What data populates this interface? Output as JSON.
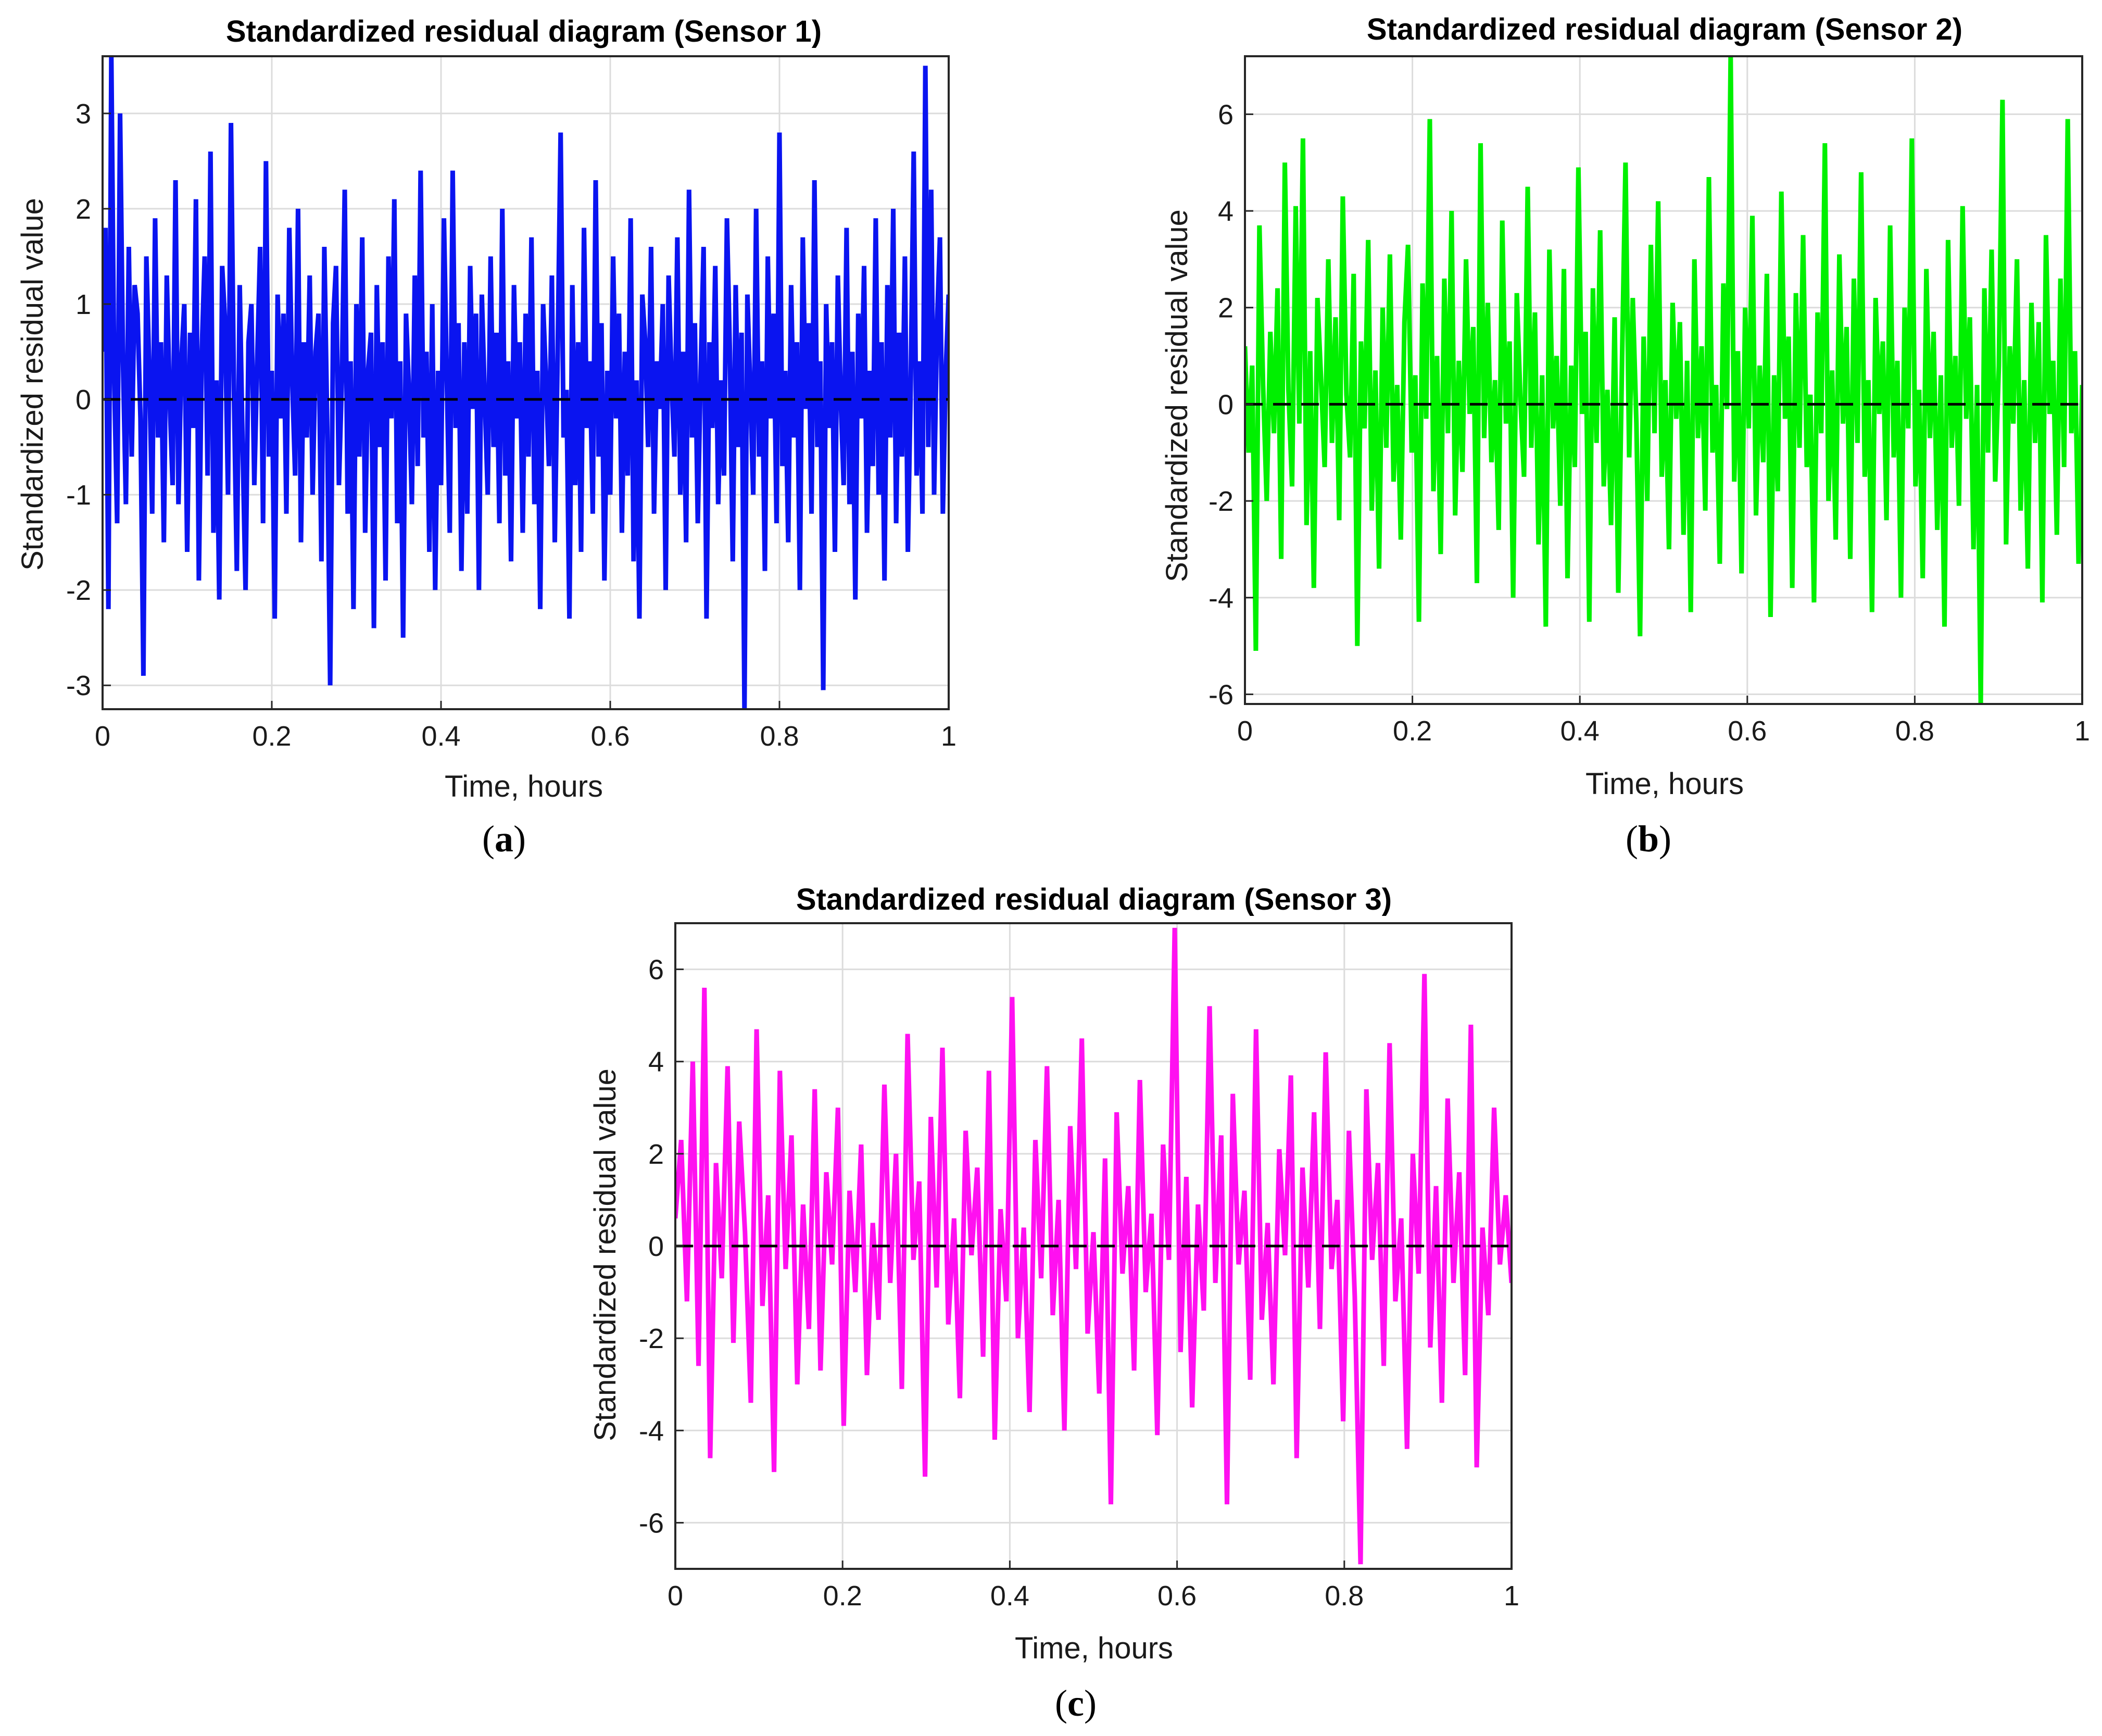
{
  "chart_data": [
    {
      "type": "line",
      "title": "Standardized residual diagram (Sensor 1)",
      "xlabel": "Time, hours",
      "ylabel": "Standardized residual value",
      "xlim": [
        0,
        1
      ],
      "ylim": [
        -3.25,
        3.6
      ],
      "xticks": [
        "0",
        "0.2",
        "0.4",
        "0.6",
        "0.8",
        "1"
      ],
      "yticks": [
        "3",
        "2",
        "1",
        "0",
        "-1",
        "-2",
        "-3"
      ],
      "ytick_values": [
        3,
        2,
        1,
        0,
        -1,
        -2,
        -3
      ],
      "grid": true,
      "reference_line": {
        "y": 0,
        "style": "dashed",
        "color": "#000000"
      },
      "caption_letter": "a",
      "color": "#0a14f0",
      "series": [
        {
          "values": [
            0.5,
            1.8,
            -2.2,
            3.6,
            0.2,
            -1.3,
            3.0,
            0.4,
            -1.1,
            1.6,
            -0.6,
            1.2,
            0.9,
            -0.2,
            -2.9,
            1.5,
            0.3,
            -1.2,
            1.9,
            -0.4,
            0.6,
            -1.5,
            1.3,
            0.0,
            -0.9,
            2.3,
            -1.1,
            0.4,
            1.0,
            -1.6,
            0.7,
            -0.3,
            2.1,
            -1.9,
            0.5,
            1.5,
            -0.8,
            2.6,
            -1.4,
            0.2,
            -2.1,
            1.4,
            0.8,
            -1.0,
            2.9,
            0.1,
            -1.8,
            1.2,
            -0.5,
            -2.0,
            0.6,
            1.0,
            -0.9,
            0.4,
            1.6,
            -1.3,
            2.5,
            -0.6,
            0.3,
            -2.3,
            1.1,
            -0.2,
            0.9,
            -1.2,
            1.8,
            0.2,
            -0.8,
            2.0,
            -1.5,
            0.6,
            -0.4,
            1.3,
            -1.0,
            0.5,
            0.9,
            -1.7,
            1.6,
            -0.3,
            -3.0,
            0.8,
            1.4,
            -0.9,
            0.2,
            2.2,
            -1.2,
            0.4,
            -2.2,
            1.0,
            -0.6,
            1.7,
            -1.4,
            0.3,
            0.7,
            -2.4,
            1.2,
            -0.5,
            0.6,
            -1.9,
            1.5,
            -0.2,
            2.1,
            -1.3,
            0.4,
            -2.5,
            0.9,
            0.1,
            -1.1,
            1.3,
            -0.7,
            2.4,
            -0.4,
            0.5,
            -1.6,
            1.0,
            -2.0,
            0.3,
            -0.9,
            1.9,
            0.2,
            -1.4,
            2.4,
            -0.3,
            0.8,
            -1.8,
            0.6,
            -1.2,
            1.4,
            -0.1,
            0.9,
            -2.0,
            1.1,
            0.0,
            -1.0,
            1.5,
            -0.5,
            0.7,
            -1.3,
            2.0,
            -0.8,
            0.4,
            -1.7,
            1.2,
            -0.2,
            0.6,
            -1.4,
            0.9,
            -0.6,
            1.7,
            -1.1,
            0.3,
            -2.2,
            1.0,
            0.2,
            -0.7,
            1.3,
            -1.5,
            0.5,
            2.8,
            -0.4,
            0.1,
            -2.3,
            1.2,
            -0.9,
            0.6,
            -1.6,
            1.8,
            -0.3,
            0.4,
            -1.2,
            2.3,
            -0.6,
            0.8,
            -1.9,
            0.3,
            -1.0,
            1.5,
            -0.2,
            0.9,
            -1.4,
            0.5,
            -0.8,
            1.9,
            -1.7,
            0.2,
            -2.3,
            1.1,
            0.6,
            -0.5,
            1.6,
            -1.2,
            0.4,
            -0.1,
            1.0,
            -2.0,
            1.3,
            0.2,
            -0.6,
            1.7,
            -1.0,
            0.5,
            -1.5,
            2.2,
            -0.4,
            0.8,
            -1.3,
            0.3,
            1.6,
            -2.3,
            0.6,
            -0.3,
            1.4,
            -1.1,
            0.2,
            -0.8,
            1.9,
            0.5,
            -1.7,
            1.2,
            -0.5,
            0.7,
            -3.25,
            1.1,
            0.1,
            -1.0,
            2.0,
            -0.6,
            0.4,
            -1.8,
            1.5,
            -0.2,
            0.9,
            -1.3,
            2.8,
            -0.7,
            0.3,
            -1.5,
            1.2,
            -0.4,
            0.6,
            -2.0,
            1.7,
            -0.1,
            0.8,
            -1.2,
            2.3,
            -0.5,
            0.4,
            -3.05,
            1.0,
            -0.3,
            0.6,
            -1.6,
            1.3,
            0.0,
            -0.9,
            1.8,
            -1.1,
            0.5,
            -2.1,
            0.9,
            -0.2,
            1.4,
            -1.4,
            0.3,
            -0.7,
            1.9,
            -1.0,
            0.6,
            -1.9,
            1.2,
            -0.4,
            2.0,
            -1.3,
            0.7,
            -0.6,
            1.5,
            -1.6,
            0.2,
            2.6,
            -0.8,
            0.4,
            -1.2,
            3.5,
            -0.5,
            2.2,
            -1.0,
            0.8,
            1.7,
            -1.2,
            0.3,
            1.1
          ]
        }
      ]
    },
    {
      "type": "line",
      "title": "Standardized residual diagram (Sensor 2)",
      "xlabel": "Time, hours",
      "ylabel": "Standardized residual value",
      "xlim": [
        0,
        1
      ],
      "ylim": [
        -6.2,
        7.2
      ],
      "xticks": [
        "0",
        "0.2",
        "0.4",
        "0.6",
        "0.8",
        "1"
      ],
      "yticks": [
        "6",
        "4",
        "2",
        "0",
        "-2",
        "-4",
        "-6"
      ],
      "ytick_values": [
        6,
        4,
        2,
        0,
        -2,
        -4,
        -6
      ],
      "grid": true,
      "reference_line": {
        "y": 0,
        "style": "dashed",
        "color": "#000000"
      },
      "caption_letter": "b",
      "color": "#00f000",
      "series": [
        {
          "values": [
            1.2,
            -1.0,
            0.8,
            -5.1,
            3.7,
            0.4,
            -2.0,
            1.5,
            -0.6,
            2.4,
            -3.2,
            5.0,
            0.3,
            -1.7,
            4.1,
            -0.4,
            5.5,
            -2.5,
            1.1,
            -3.8,
            2.2,
            0.5,
            -1.3,
            3.0,
            -0.8,
            1.8,
            -2.4,
            4.3,
            0.2,
            -1.1,
            2.7,
            -5.0,
            1.3,
            -0.5,
            3.4,
            -2.2,
            0.7,
            -3.4,
            2.0,
            -0.9,
            3.1,
            -1.6,
            0.4,
            -2.8,
            1.7,
            3.3,
            -1.0,
            0.6,
            -4.5,
            2.5,
            -0.3,
            5.9,
            -1.8,
            1.0,
            -3.1,
            2.6,
            -0.6,
            4.0,
            -2.3,
            0.9,
            -1.4,
            3.0,
            -0.2,
            1.6,
            -3.7,
            5.4,
            -0.7,
            2.1,
            -1.2,
            0.5,
            -2.6,
            3.8,
            -0.4,
            1.3,
            -4.0,
            2.3,
            0.1,
            -1.5,
            4.5,
            -0.9,
            1.9,
            -2.9,
            0.6,
            -4.6,
            3.2,
            -0.5,
            1.0,
            -2.1,
            2.8,
            -3.6,
            0.8,
            -1.3,
            4.9,
            -0.2,
            1.5,
            -4.5,
            2.4,
            -0.8,
            3.6,
            -1.7,
            0.3,
            -2.5,
            1.8,
            -3.9,
            0.7,
            5.0,
            -1.1,
            2.2,
            -0.4,
            -4.8,
            1.4,
            -2.0,
            3.3,
            -0.6,
            4.2,
            -1.5,
            0.5,
            -3.0,
            2.1,
            -0.3,
            1.7,
            -2.7,
            0.9,
            -4.3,
            3.0,
            -0.7,
            1.2,
            -2.2,
            4.7,
            -1.0,
            0.4,
            -3.3,
            2.5,
            -0.1,
            7.2,
            -1.6,
            1.1,
            -3.5,
            2.0,
            -0.5,
            3.9,
            -2.3,
            0.8,
            -1.2,
            2.7,
            -4.4,
            0.6,
            -1.8,
            4.4,
            -0.3,
            1.4,
            -3.8,
            2.3,
            -0.9,
            3.5,
            -1.3,
            0.2,
            -4.1,
            1.9,
            -0.6,
            5.4,
            -2.0,
            0.7,
            -2.8,
            3.1,
            -0.4,
            1.6,
            -3.2,
            2.6,
            -0.8,
            4.8,
            -1.5,
            0.5,
            -4.3,
            2.2,
            -0.2,
            1.3,
            -2.4,
            3.7,
            -1.1,
            0.9,
            -4.0,
            2.0,
            -0.5,
            5.5,
            -1.7,
            0.3,
            -3.6,
            2.8,
            -0.7,
            1.5,
            -2.6,
            0.6,
            -4.6,
            3.4,
            -0.9,
            1.0,
            -2.1,
            4.1,
            -0.3,
            1.8,
            -3.0,
            0.4,
            -6.2,
            2.4,
            -1.0,
            3.2,
            -1.6,
            0.8,
            6.3,
            -2.9,
            1.2,
            -0.4,
            3.0,
            -2.2,
            0.5,
            -3.4,
            2.1,
            -0.8,
            1.7,
            -4.1,
            3.5,
            -0.2,
            0.9,
            -2.7,
            2.6,
            -1.3,
            5.9,
            -0.6,
            1.1,
            -3.3,
            0.4
          ]
        }
      ]
    },
    {
      "type": "line",
      "title": "Standardized residual diagram (Sensor 3)",
      "xlabel": "Time, hours",
      "ylabel": "Standardized residual value",
      "xlim": [
        0,
        1
      ],
      "ylim": [
        -7.0,
        7.0
      ],
      "xticks": [
        "0",
        "0.2",
        "0.4",
        "0.6",
        "0.8",
        "1"
      ],
      "yticks": [
        "6",
        "4",
        "2",
        "0",
        "-2",
        "-4",
        "-6"
      ],
      "ytick_values": [
        6,
        4,
        2,
        0,
        -2,
        -4,
        -6
      ],
      "grid": true,
      "reference_line": {
        "y": 0,
        "style": "dashed",
        "color": "#000000"
      },
      "caption_letter": "c",
      "color": "#ff10f0",
      "series": [
        {
          "values": [
            0.6,
            2.3,
            -1.2,
            4.0,
            -2.6,
            5.6,
            -4.6,
            1.8,
            -0.7,
            3.9,
            -2.1,
            2.7,
            0.3,
            -3.4,
            4.7,
            -1.3,
            1.1,
            -4.9,
            3.8,
            -0.5,
            2.4,
            -3.0,
            0.9,
            -1.8,
            3.4,
            -2.7,
            1.6,
            -0.4,
            3.0,
            -3.9,
            1.2,
            -1.0,
            2.2,
            -2.8,
            0.5,
            -1.6,
            3.5,
            -0.8,
            2.0,
            -3.1,
            4.6,
            -0.3,
            1.4,
            -5.0,
            2.8,
            -0.9,
            4.3,
            -1.7,
            0.6,
            -3.3,
            2.5,
            -0.2,
            1.7,
            -2.4,
            3.8,
            -4.2,
            0.8,
            -1.2,
            5.4,
            -2.0,
            0.4,
            -3.6,
            2.3,
            -0.7,
            3.9,
            -1.5,
            1.0,
            -4.0,
            2.6,
            -0.5,
            4.5,
            -1.9,
            0.3,
            -3.2,
            1.9,
            -5.6,
            2.9,
            -0.6,
            1.3,
            -2.7,
            3.6,
            -1.0,
            0.7,
            -4.1,
            2.2,
            -0.3,
            6.9,
            -2.3,
            1.5,
            -3.5,
            0.9,
            -1.4,
            5.2,
            -0.8,
            2.4,
            -5.6,
            3.3,
            -0.4,
            1.2,
            -2.9,
            4.7,
            -1.6,
            0.5,
            -3.0,
            2.1,
            -0.2,
            3.7,
            -4.6,
            1.7,
            -0.9,
            2.9,
            -1.8,
            4.2,
            -0.5,
            1.0,
            -3.8,
            2.5,
            -1.1,
            -6.9,
            3.4,
            -0.3,
            1.8,
            -2.6,
            4.4,
            -1.2,
            0.6,
            -4.4,
            2.0,
            -0.6,
            5.9,
            -2.2,
            1.3,
            -3.4,
            3.2,
            -0.8,
            1.6,
            -2.8,
            4.8,
            -4.8,
            0.4,
            -1.5,
            3.0,
            -0.4,
            1.1,
            -0.8
          ]
        }
      ]
    }
  ]
}
